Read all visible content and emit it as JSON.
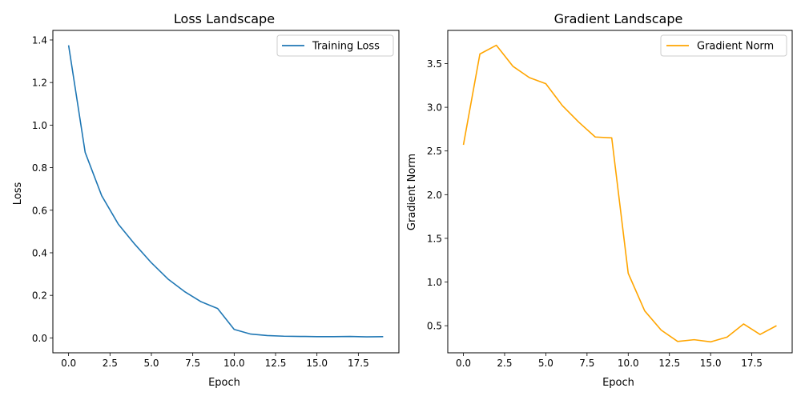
{
  "chart_data": [
    {
      "type": "line",
      "title": "Loss Landscape",
      "xlabel": "Epoch",
      "ylabel": "Loss",
      "xlim": [
        -0.95,
        19.95
      ],
      "ylim": [
        -0.07,
        1.445
      ],
      "xticks": [
        0,
        2.5,
        5,
        7.5,
        10,
        12.5,
        15,
        17.5
      ],
      "xtick_labels": [
        "0.0",
        "2.5",
        "5.0",
        "7.5",
        "10.0",
        "12.5",
        "15.0",
        "17.5"
      ],
      "yticks": [
        0,
        0.2,
        0.4,
        0.6,
        0.8,
        1.0,
        1.2,
        1.4
      ],
      "ytick_labels": [
        "0.0",
        "0.2",
        "0.4",
        "0.6",
        "0.8",
        "1.0",
        "1.2",
        "1.4"
      ],
      "grid": false,
      "legend": "top-right",
      "x": [
        0,
        1,
        2,
        3,
        4,
        5,
        6,
        7,
        8,
        9,
        10,
        11,
        12,
        13,
        14,
        15,
        16,
        17,
        18,
        19
      ],
      "series": [
        {
          "name": "Training Loss",
          "color": "#1f77b4",
          "values": [
            1.375,
            0.872,
            0.668,
            0.535,
            0.44,
            0.353,
            0.277,
            0.218,
            0.17,
            0.138,
            0.04,
            0.018,
            0.011,
            0.008,
            0.007,
            0.006,
            0.006,
            0.007,
            0.005,
            0.006
          ]
        }
      ]
    },
    {
      "type": "line",
      "title": "Gradient Landscape",
      "xlabel": "Epoch",
      "ylabel": "Gradient Norm",
      "xlim": [
        -0.95,
        19.95
      ],
      "ylim": [
        0.19,
        3.88
      ],
      "xticks": [
        0,
        2.5,
        5,
        7.5,
        10,
        12.5,
        15,
        17.5
      ],
      "xtick_labels": [
        "0.0",
        "2.5",
        "5.0",
        "7.5",
        "10.0",
        "12.5",
        "15.0",
        "17.5"
      ],
      "yticks": [
        0.5,
        1.0,
        1.5,
        2.0,
        2.5,
        3.0,
        3.5
      ],
      "ytick_labels": [
        "0.5",
        "1.0",
        "1.5",
        "2.0",
        "2.5",
        "3.0",
        "3.5"
      ],
      "grid": false,
      "legend": "top-right",
      "x": [
        0,
        1,
        2,
        3,
        4,
        5,
        6,
        7,
        8,
        9,
        10,
        11,
        12,
        13,
        14,
        15,
        16,
        17,
        18,
        19
      ],
      "series": [
        {
          "name": "Gradient Norm",
          "color": "#ffa500",
          "values": [
            2.57,
            3.61,
            3.71,
            3.47,
            3.34,
            3.27,
            3.02,
            2.83,
            2.66,
            2.65,
            1.1,
            0.67,
            0.45,
            0.32,
            0.34,
            0.315,
            0.37,
            0.52,
            0.4,
            0.5
          ]
        }
      ]
    }
  ]
}
